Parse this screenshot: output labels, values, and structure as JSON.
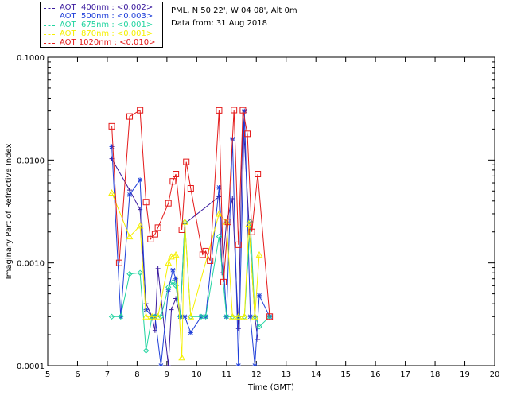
{
  "legend": [
    {
      "label": "AOT  400nm : <0.002>",
      "color": "#3a1a9e"
    },
    {
      "label": "AOT  500nm : <0.003>",
      "color": "#1f3fd9"
    },
    {
      "label": "AOT  675nm : <0.001>",
      "color": "#22d4a0"
    },
    {
      "label": "AOT  870nm : <0.001>",
      "color": "#f5f000"
    },
    {
      "label": "AOT 1020nm : <0.010>",
      "color": "#e41a1a"
    }
  ],
  "site": "PML, N 50 22', W 04 08', Alt 0m",
  "date_line": "Data from: 31 Aug 2018",
  "chart_data": {
    "type": "line",
    "xlabel": "Time (GMT)",
    "ylabel": "Imaginary Part of Refractive Index",
    "xlim": [
      5,
      20
    ],
    "ylim": [
      0.0001,
      0.1
    ],
    "yscale": "log",
    "x_ticks": [
      "5",
      "6",
      "7",
      "8",
      "9",
      "10",
      "11",
      "12",
      "13",
      "14",
      "15",
      "16",
      "17",
      "18",
      "19",
      "20"
    ],
    "y_ticks": [
      "0.0001",
      "0.0010",
      "0.0100",
      "0.1000"
    ],
    "series": [
      {
        "name": "AOT  400nm : <0.002>",
        "color": "#3a1a9e",
        "marker": "+",
        "x": [
          7.15,
          7.75,
          8.1,
          8.3,
          8.5,
          8.6,
          8.7,
          9.05,
          9.15,
          9.3,
          9.45,
          9.6,
          10.75,
          10.85,
          11.0,
          11.2,
          11.4,
          11.55,
          11.75,
          11.95,
          12.05
        ],
        "y": [
          0.0103,
          0.0051,
          0.0033,
          0.0004,
          0.0003,
          0.00022,
          0.00088,
          0.0001,
          0.00035,
          0.00045,
          0.0003,
          0.0024,
          0.0044,
          0.0008,
          0.0025,
          0.0042,
          0.00023,
          0.028,
          0.0025,
          0.0003,
          0.00018
        ]
      },
      {
        "name": "AOT  500nm : <0.003>",
        "color": "#1f3fd9",
        "marker": "*",
        "x": [
          7.15,
          7.45,
          7.75,
          8.1,
          8.3,
          8.5,
          8.6,
          8.8,
          9.05,
          9.2,
          9.3,
          9.45,
          9.6,
          9.8,
          10.15,
          10.3,
          10.75,
          11.0,
          11.2,
          11.4,
          11.6,
          11.8,
          11.95,
          12.1,
          12.45
        ],
        "y": [
          0.0135,
          0.0003,
          0.0046,
          0.0064,
          0.00035,
          0.0003,
          0.0003,
          0.0001,
          0.00055,
          0.00085,
          0.0007,
          0.0003,
          0.0003,
          0.00021,
          0.0003,
          0.0003,
          0.0054,
          0.0003,
          0.016,
          0.0001,
          0.03,
          0.0003,
          0.0001,
          0.00048,
          0.0003
        ]
      },
      {
        "name": "AOT  675nm : <0.001>",
        "color": "#22d4a0",
        "marker": "◇",
        "x": [
          7.15,
          7.45,
          7.75,
          8.1,
          8.3,
          8.5,
          8.6,
          8.8,
          9.05,
          9.2,
          9.3,
          9.45,
          9.6,
          9.8,
          10.15,
          10.3,
          10.75,
          11.0,
          11.2,
          11.4,
          11.6,
          11.8,
          11.95,
          12.1,
          12.45
        ],
        "y": [
          0.0003,
          0.0003,
          0.00078,
          0.0008,
          0.00014,
          0.0003,
          0.0003,
          0.0003,
          0.00058,
          0.00065,
          0.0006,
          0.0003,
          0.0025,
          0.0003,
          0.0003,
          0.0003,
          0.0018,
          0.0003,
          0.0003,
          0.0003,
          0.0003,
          0.0025,
          0.0003,
          0.00024,
          0.0003
        ]
      },
      {
        "name": "AOT  870nm : <0.001>",
        "color": "#f5f000",
        "marker": "△",
        "x": [
          7.15,
          7.75,
          8.1,
          8.3,
          8.5,
          8.7,
          9.05,
          9.15,
          9.3,
          9.5,
          9.6,
          9.8,
          10.75,
          11.0,
          11.2,
          11.4,
          11.6,
          11.75,
          11.95,
          12.1
        ],
        "y": [
          0.0048,
          0.0018,
          0.0023,
          0.0003,
          0.0003,
          0.0003,
          0.001,
          0.00115,
          0.0012,
          0.00012,
          0.0025,
          0.0003,
          0.003,
          0.0025,
          0.0003,
          0.0003,
          0.0003,
          0.0024,
          0.0003,
          0.0012
        ]
      },
      {
        "name": "AOT 1020nm : <0.010>",
        "color": "#e41a1a",
        "marker": "□",
        "x": [
          7.15,
          7.4,
          7.75,
          8.1,
          8.3,
          8.45,
          8.6,
          8.7,
          9.05,
          9.2,
          9.3,
          9.5,
          9.65,
          9.8,
          10.2,
          10.3,
          10.45,
          10.75,
          10.9,
          11.05,
          11.25,
          11.4,
          11.55,
          11.7,
          11.85,
          12.05,
          12.45
        ],
        "y": [
          0.0213,
          0.001,
          0.0265,
          0.0305,
          0.0039,
          0.0017,
          0.0019,
          0.0022,
          0.0038,
          0.0062,
          0.0073,
          0.0021,
          0.0096,
          0.0053,
          0.0012,
          0.0013,
          0.00105,
          0.0304,
          0.00065,
          0.0025,
          0.0306,
          0.0015,
          0.0305,
          0.018,
          0.002,
          0.0073,
          0.0003
        ]
      }
    ]
  }
}
